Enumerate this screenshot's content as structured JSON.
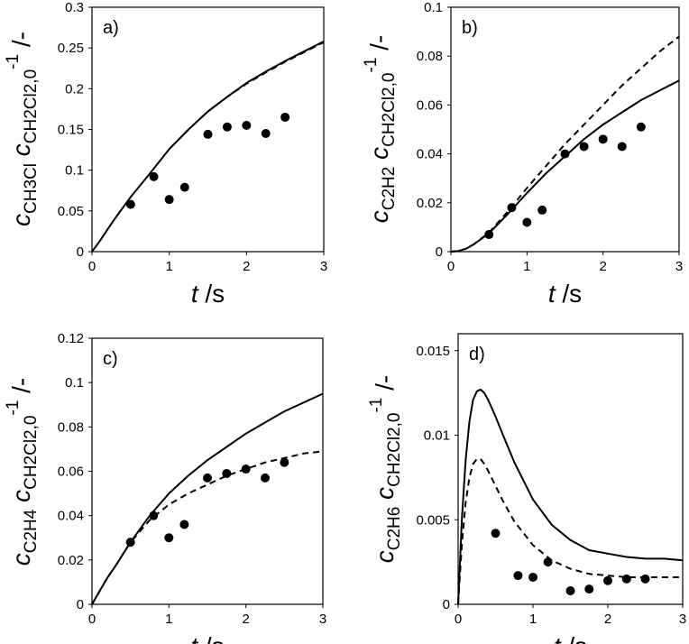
{
  "chart_data": [
    {
      "type": "line",
      "panel_label": "a)",
      "ylabel": {
        "pre": "c",
        "sub1": "CH3Cl",
        "mid": " c",
        "sub2": "CH2Cl2,0",
        "sup": "-1",
        "post": " /-"
      },
      "xlabel": {
        "var": "t",
        "unit": " /s"
      },
      "xlim": [
        0,
        3
      ],
      "xticks": [
        "0",
        "1",
        "2",
        "3"
      ],
      "ylim": [
        0,
        0.3
      ],
      "yticks": [
        "0",
        "0.05",
        "0.1",
        "0.15",
        "0.2",
        "0.25",
        "0.3"
      ],
      "series": [
        {
          "style": "solid",
          "x": [
            0,
            0.1,
            0.2,
            0.3,
            0.5,
            0.75,
            1.0,
            1.25,
            1.5,
            1.75,
            2.0,
            2.25,
            2.5,
            2.75,
            3.0
          ],
          "y": [
            0,
            0.013,
            0.027,
            0.041,
            0.067,
            0.096,
            0.126,
            0.15,
            0.172,
            0.19,
            0.207,
            0.221,
            0.234,
            0.246,
            0.258
          ]
        },
        {
          "style": "dashed",
          "x": [
            1.0,
            1.25,
            1.5,
            1.75,
            2.0,
            2.25,
            2.5,
            2.75,
            3.0
          ],
          "y": [
            0.126,
            0.15,
            0.172,
            0.19,
            0.206,
            0.22,
            0.233,
            0.245,
            0.257
          ]
        },
        {
          "style": "markers",
          "x": [
            0.5,
            0.8,
            1.0,
            1.2,
            1.5,
            1.75,
            2.0,
            2.25,
            2.5
          ],
          "y": [
            0.058,
            0.092,
            0.064,
            0.079,
            0.144,
            0.153,
            0.155,
            0.145,
            0.165
          ]
        }
      ]
    },
    {
      "type": "line",
      "panel_label": "b)",
      "ylabel": {
        "pre": "c",
        "sub1": "C2H2",
        "mid": "  c",
        "sub2": "CH2Cl2,0",
        "sup": "-1",
        "post": " /-"
      },
      "xlabel": {
        "var": "t",
        "unit": " /s"
      },
      "xlim": [
        0,
        3
      ],
      "xticks": [
        "0",
        "1",
        "2",
        "3"
      ],
      "ylim": [
        0,
        0.1
      ],
      "yticks": [
        "0",
        "0.02",
        "0.04",
        "0.06",
        "0.08",
        "0.1"
      ],
      "series": [
        {
          "style": "solid",
          "x": [
            0,
            0.1,
            0.2,
            0.3,
            0.5,
            0.75,
            1.0,
            1.25,
            1.5,
            1.75,
            2.0,
            2.25,
            2.5,
            2.75,
            3.0
          ],
          "y": [
            0,
            0.0003,
            0.0012,
            0.003,
            0.0075,
            0.0155,
            0.024,
            0.032,
            0.039,
            0.046,
            0.052,
            0.057,
            0.062,
            0.066,
            0.07
          ]
        },
        {
          "style": "dashed",
          "x": [
            0,
            0.1,
            0.2,
            0.3,
            0.5,
            0.75,
            1.0,
            1.25,
            1.5,
            1.75,
            2.0,
            2.25,
            2.5,
            2.75,
            3.0
          ],
          "y": [
            0,
            0.0003,
            0.0012,
            0.003,
            0.0078,
            0.0165,
            0.026,
            0.035,
            0.044,
            0.052,
            0.06,
            0.068,
            0.075,
            0.082,
            0.088
          ]
        },
        {
          "style": "markers",
          "x": [
            0.5,
            0.8,
            1.0,
            1.2,
            1.5,
            1.75,
            2.0,
            2.25,
            2.5
          ],
          "y": [
            0.007,
            0.018,
            0.012,
            0.017,
            0.04,
            0.043,
            0.046,
            0.043,
            0.051
          ]
        }
      ]
    },
    {
      "type": "line",
      "panel_label": "c)",
      "ylabel": {
        "pre": "c",
        "sub1": "C2H4",
        "mid": "  c",
        "sub2": "CH2Cl2,0",
        "sup": "-1",
        "post": " /-"
      },
      "xlabel": {
        "var": "t",
        "unit": " /s"
      },
      "xlim": [
        0,
        3
      ],
      "xticks": [
        "0",
        "1",
        "2",
        "3"
      ],
      "ylim": [
        0,
        0.12
      ],
      "yticks": [
        "0",
        "0.02",
        "0.04",
        "0.06",
        "0.08",
        "0.1",
        "0.12"
      ],
      "series": [
        {
          "style": "solid",
          "x": [
            0,
            0.1,
            0.2,
            0.3,
            0.5,
            0.75,
            1.0,
            1.25,
            1.5,
            1.75,
            2.0,
            2.25,
            2.5,
            2.75,
            3.0
          ],
          "y": [
            0,
            0.006,
            0.012,
            0.017,
            0.028,
            0.04,
            0.05,
            0.058,
            0.065,
            0.071,
            0.077,
            0.082,
            0.087,
            0.091,
            0.095
          ]
        },
        {
          "style": "dashed",
          "x": [
            0,
            0.1,
            0.2,
            0.3,
            0.5,
            0.75,
            1.0,
            1.25,
            1.5,
            1.75,
            2.0,
            2.25,
            2.5,
            2.75,
            3.0
          ],
          "y": [
            0,
            0.006,
            0.012,
            0.017,
            0.028,
            0.038,
            0.045,
            0.05,
            0.054,
            0.058,
            0.061,
            0.064,
            0.066,
            0.068,
            0.069
          ]
        },
        {
          "style": "markers",
          "x": [
            0.5,
            0.8,
            1.0,
            1.2,
            1.5,
            1.75,
            2.0,
            2.25,
            2.5
          ],
          "y": [
            0.028,
            0.04,
            0.03,
            0.036,
            0.057,
            0.059,
            0.061,
            0.057,
            0.064
          ]
        }
      ]
    },
    {
      "type": "line",
      "panel_label": "d)",
      "ylabel": {
        "pre": "c",
        "sub1": "C2H6",
        "mid": "  c",
        "sub2": "CH2Cl2,0",
        "sup": "-1",
        "post": " /-"
      },
      "xlabel": {
        "var": "t",
        "unit": " /s"
      },
      "xlim": [
        0,
        3
      ],
      "xticks": [
        "0",
        "1",
        "2",
        "3"
      ],
      "ylim": [
        0,
        0.016
      ],
      "yticks": [
        "0",
        "0.005",
        "0.01",
        "0.015"
      ],
      "ytick_values": [
        0,
        0.005,
        0.01,
        0.015
      ],
      "series": [
        {
          "style": "solid",
          "x": [
            0,
            0.05,
            0.1,
            0.15,
            0.2,
            0.25,
            0.3,
            0.35,
            0.4,
            0.5,
            0.6,
            0.75,
            1.0,
            1.25,
            1.5,
            1.75,
            2.0,
            2.25,
            2.5,
            2.75,
            3.0
          ],
          "y": [
            0,
            0.005,
            0.0085,
            0.0108,
            0.0121,
            0.0126,
            0.0127,
            0.0125,
            0.0121,
            0.0111,
            0.01,
            0.0084,
            0.0062,
            0.0047,
            0.0038,
            0.0032,
            0.003,
            0.0028,
            0.0027,
            0.0027,
            0.0026
          ]
        },
        {
          "style": "dashed",
          "x": [
            0,
            0.05,
            0.1,
            0.15,
            0.2,
            0.25,
            0.3,
            0.35,
            0.4,
            0.5,
            0.6,
            0.75,
            1.0,
            1.25,
            1.5,
            1.75,
            2.0,
            2.25,
            2.5,
            2.75,
            3.0
          ],
          "y": [
            0,
            0.0035,
            0.006,
            0.0075,
            0.0083,
            0.0086,
            0.0086,
            0.0083,
            0.0079,
            0.007,
            0.0061,
            0.0049,
            0.0035,
            0.0026,
            0.0021,
            0.0018,
            0.0017,
            0.0016,
            0.0016,
            0.0016,
            0.0016
          ]
        },
        {
          "style": "markers",
          "x": [
            0.5,
            0.8,
            1.0,
            1.2,
            1.5,
            1.75,
            2.0,
            2.25,
            2.5
          ],
          "y": [
            0.0042,
            0.0017,
            0.0016,
            0.0025,
            0.0008,
            0.0009,
            0.0014,
            0.0015,
            0.0015
          ]
        }
      ]
    }
  ]
}
